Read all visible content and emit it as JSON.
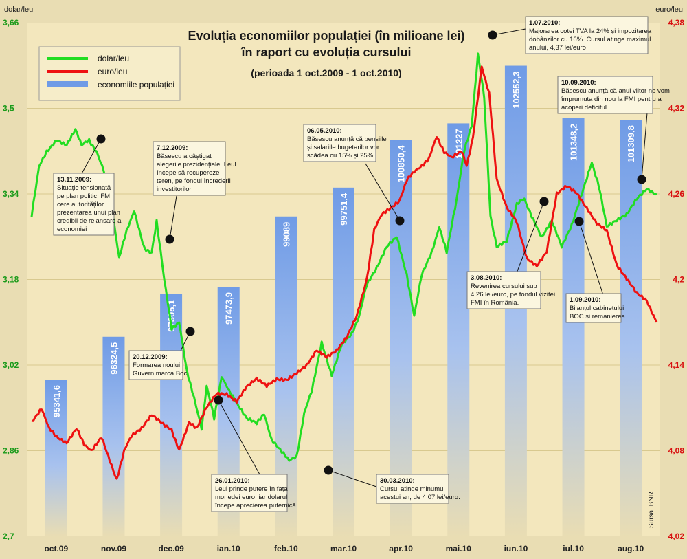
{
  "chart_data": {
    "type": "combo-bar-line",
    "title": "Evoluția economiilor populației (în milioane lei)",
    "title_line2": "în raport cu evoluția cursului",
    "subtitle": "(perioada 1 oct.2009 - 1 oct.2010)",
    "source": "Sursa: BNR",
    "left_axis": {
      "label": "dolar/leu",
      "ticks": [
        "3,66",
        "3,5",
        "3,34",
        "3,18",
        "3,02",
        "2,86",
        "2,7"
      ],
      "range": [
        2.7,
        3.66
      ]
    },
    "right_axis": {
      "label": "euro/leu",
      "ticks": [
        "4,38",
        "4,32",
        "4,26",
        "4,2",
        "4,14",
        "4,08",
        "4,02"
      ],
      "range": [
        4.02,
        4.38
      ]
    },
    "months": [
      "oct.09",
      "nov.09",
      "dec.09",
      "ian.10",
      "feb.10",
      "mar.10",
      "apr.10",
      "mai.10",
      "iun.10",
      "iul.10",
      "aug.10"
    ],
    "legend": [
      {
        "name": "dolar/leu",
        "color": "#22dd22"
      },
      {
        "name": "euro/leu",
        "color": "#ee1111"
      },
      {
        "name": "economiile populației",
        "color": "#6f9be6"
      }
    ],
    "bars": {
      "name": "economiile populației",
      "labels": [
        "95341,6",
        "96324,5",
        "97305,1",
        "97473,9",
        "99089",
        "99751,4",
        "100850,4",
        "101227",
        "102552,3",
        "101348,2",
        "101309,8"
      ],
      "values": [
        95341.6,
        96324.5,
        97305.1,
        97473.9,
        99089,
        99751.4,
        100850.4,
        101227,
        102552.3,
        101348.2,
        101309.8
      ],
      "axis_range": [
        91740,
        103540
      ]
    },
    "series": [
      {
        "name": "dolar/leu",
        "axis": "left",
        "knots": [
          [
            0,
            3.3
          ],
          [
            0.3,
            3.39
          ],
          [
            0.6,
            3.42
          ],
          [
            1.0,
            3.44
          ],
          [
            1.4,
            3.43
          ],
          [
            1.75,
            3.46
          ],
          [
            2.0,
            3.43
          ],
          [
            2.3,
            3.44
          ],
          [
            2.6,
            3.42
          ],
          [
            2.9,
            3.38
          ],
          [
            3.2,
            3.32
          ],
          [
            3.5,
            3.22
          ],
          [
            3.8,
            3.27
          ],
          [
            4.1,
            3.31
          ],
          [
            4.5,
            3.24
          ],
          [
            4.8,
            3.23
          ],
          [
            5.0,
            3.29
          ],
          [
            5.3,
            3.18
          ],
          [
            5.6,
            3.09
          ],
          [
            5.9,
            3.1
          ],
          [
            6.2,
            3.01
          ],
          [
            6.5,
            2.96
          ],
          [
            6.8,
            2.9
          ],
          [
            7.0,
            2.98
          ],
          [
            7.3,
            2.92
          ],
          [
            7.6,
            3.0
          ],
          [
            7.9,
            2.97
          ],
          [
            8.2,
            2.95
          ],
          [
            8.6,
            2.92
          ],
          [
            9.0,
            2.91
          ],
          [
            9.3,
            2.93
          ],
          [
            9.6,
            2.88
          ],
          [
            10.0,
            2.86
          ],
          [
            10.3,
            2.84
          ],
          [
            10.6,
            2.85
          ],
          [
            10.9,
            2.93
          ],
          [
            11.2,
            2.97
          ],
          [
            11.6,
            3.06
          ],
          [
            12.0,
            3.0
          ],
          [
            12.4,
            3.06
          ],
          [
            12.8,
            3.08
          ],
          [
            13.1,
            3.11
          ],
          [
            13.4,
            3.17
          ],
          [
            13.8,
            3.2
          ],
          [
            14.2,
            3.24
          ],
          [
            14.6,
            3.26
          ],
          [
            15.0,
            3.19
          ],
          [
            15.3,
            3.11
          ],
          [
            15.6,
            3.19
          ],
          [
            16.0,
            3.23
          ],
          [
            16.3,
            3.28
          ],
          [
            16.6,
            3.23
          ],
          [
            17.0,
            3.33
          ],
          [
            17.3,
            3.42
          ],
          [
            17.6,
            3.47
          ],
          [
            17.85,
            3.6
          ],
          [
            18.1,
            3.52
          ],
          [
            18.35,
            3.3
          ],
          [
            18.6,
            3.24
          ],
          [
            19.0,
            3.25
          ],
          [
            19.4,
            3.32
          ],
          [
            19.7,
            3.33
          ],
          [
            20.0,
            3.3
          ],
          [
            20.4,
            3.26
          ],
          [
            20.8,
            3.29
          ],
          [
            21.2,
            3.24
          ],
          [
            21.6,
            3.28
          ],
          [
            22.0,
            3.34
          ],
          [
            22.4,
            3.4
          ],
          [
            22.7,
            3.35
          ],
          [
            23.0,
            3.28
          ],
          [
            23.4,
            3.29
          ],
          [
            23.8,
            3.3
          ],
          [
            24.2,
            3.33
          ],
          [
            24.6,
            3.35
          ],
          [
            25.0,
            3.34
          ]
        ]
      },
      {
        "name": "euro/leu",
        "axis": "right",
        "knots": [
          [
            0,
            4.1
          ],
          [
            0.4,
            4.11
          ],
          [
            0.7,
            4.095
          ],
          [
            1.0,
            4.09
          ],
          [
            1.4,
            4.085
          ],
          [
            1.8,
            4.095
          ],
          [
            2.1,
            4.085
          ],
          [
            2.4,
            4.08
          ],
          [
            2.8,
            4.09
          ],
          [
            3.2,
            4.07
          ],
          [
            3.4,
            4.06
          ],
          [
            3.7,
            4.08
          ],
          [
            4.0,
            4.09
          ],
          [
            4.4,
            4.095
          ],
          [
            4.8,
            4.105
          ],
          [
            5.2,
            4.1
          ],
          [
            5.6,
            4.095
          ],
          [
            5.9,
            4.08
          ],
          [
            6.3,
            4.1
          ],
          [
            6.6,
            4.095
          ],
          [
            7.0,
            4.11
          ],
          [
            7.4,
            4.12
          ],
          [
            7.8,
            4.12
          ],
          [
            8.2,
            4.115
          ],
          [
            8.6,
            4.125
          ],
          [
            9.0,
            4.13
          ],
          [
            9.4,
            4.125
          ],
          [
            9.8,
            4.13
          ],
          [
            10.2,
            4.13
          ],
          [
            10.6,
            4.135
          ],
          [
            11.0,
            4.14
          ],
          [
            11.4,
            4.15
          ],
          [
            11.8,
            4.145
          ],
          [
            12.2,
            4.15
          ],
          [
            12.6,
            4.16
          ],
          [
            13.0,
            4.175
          ],
          [
            13.4,
            4.2
          ],
          [
            13.7,
            4.235
          ],
          [
            14.0,
            4.245
          ],
          [
            14.3,
            4.25
          ],
          [
            14.7,
            4.255
          ],
          [
            15.0,
            4.27
          ],
          [
            15.3,
            4.275
          ],
          [
            15.6,
            4.28
          ],
          [
            15.9,
            4.285
          ],
          [
            16.2,
            4.3
          ],
          [
            16.5,
            4.29
          ],
          [
            16.8,
            4.285
          ],
          [
            17.2,
            4.29
          ],
          [
            17.4,
            4.28
          ],
          [
            17.65,
            4.3
          ],
          [
            18.0,
            4.35
          ],
          [
            18.3,
            4.33
          ],
          [
            18.6,
            4.27
          ],
          [
            19.0,
            4.25
          ],
          [
            19.4,
            4.24
          ],
          [
            19.8,
            4.215
          ],
          [
            20.2,
            4.21
          ],
          [
            20.6,
            4.22
          ],
          [
            21.0,
            4.26
          ],
          [
            21.4,
            4.265
          ],
          [
            21.8,
            4.26
          ],
          [
            22.2,
            4.25
          ],
          [
            22.6,
            4.24
          ],
          [
            23.0,
            4.235
          ],
          [
            23.4,
            4.21
          ],
          [
            23.8,
            4.2
          ],
          [
            24.2,
            4.19
          ],
          [
            24.6,
            4.185
          ],
          [
            25.0,
            4.17
          ]
        ]
      }
    ],
    "annotations": [
      {
        "date": "13.11.2009:",
        "text": [
          "Situație tensionată",
          "pe plan politic, FMI",
          "cere autorităților",
          "prezentarea unui plan",
          "credibil de relansare a",
          "economiei"
        ]
      },
      {
        "date": "7.12.2009:",
        "text": [
          "Băsescu a câștigat",
          "alegerile prezidențiale. Leul",
          "începe să recupereze",
          "teren, pe fondul încrederii",
          "investitorilor"
        ]
      },
      {
        "date": "20.12.2009:",
        "text": [
          "Formarea noului",
          "Guvern marca Boc"
        ]
      },
      {
        "date": "26.01.2010:",
        "text": [
          "Leul prinde putere în fața",
          "monedei euro, iar dolarul",
          "începe aprecierea puternică"
        ]
      },
      {
        "date": "30.03.2010:",
        "text": [
          "Cursul atinge minumul",
          "acestui an, de 4,07 lei/euro."
        ]
      },
      {
        "date": "06.05.2010:",
        "text": [
          "Băsescu anunță că pensiile",
          "și salariile bugetarilor vor",
          "scădea cu 15% și 25%"
        ]
      },
      {
        "date": "1.07.2010:",
        "text": [
          "Majorarea cotei TVA la 24% și impozitarea",
          "dobânzilor cu 16%. Cursul atinge maximul",
          "anului, 4,37 lei/euro"
        ]
      },
      {
        "date": "10.09.2010:",
        "text": [
          "Băsescu anunță că anul viitor ne vom",
          "împrumuta din nou la FMI pentru a",
          "acoperi deficitul"
        ]
      },
      {
        "date": "3.08.2010:",
        "text": [
          "Revenirea cursului sub",
          "4,26 lei/euro, pe fondul vizitei",
          "FMI în România."
        ]
      },
      {
        "date": "1.09.2010:",
        "text": [
          "Bilanțul cabinetului",
          "BOC și remanierea"
        ]
      }
    ]
  }
}
